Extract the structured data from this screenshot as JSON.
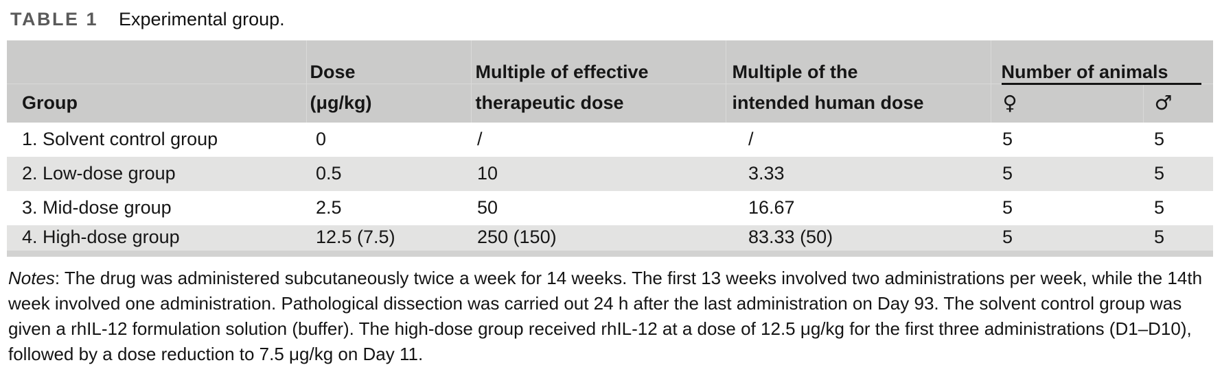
{
  "title": {
    "label": "TABLE 1",
    "caption": "Experimental group."
  },
  "table": {
    "columns": {
      "group": "Group",
      "dose_line1": "Dose",
      "dose_line2": "(μg/kg)",
      "eff_line1": "Multiple of effective",
      "eff_line2": "therapeutic dose",
      "human_line1": "Multiple of the",
      "human_line2": "intended human dose",
      "animals_group": "Number of animals",
      "female_symbol": "♀",
      "male_symbol": "♂"
    },
    "rows": [
      {
        "group": "1. Solvent control group",
        "dose": "0",
        "eff": "/",
        "human": "/",
        "female": "5",
        "male": "5"
      },
      {
        "group": "2. Low-dose group",
        "dose": "0.5",
        "eff": "10",
        "human": "3.33",
        "female": "5",
        "male": "5"
      },
      {
        "group": "3. Mid-dose group",
        "dose": "2.5",
        "eff": "50",
        "human": "16.67",
        "female": "5",
        "male": "5"
      },
      {
        "group": "4. High-dose group",
        "dose": "12.5 (7.5)",
        "eff": "250 (150)",
        "human": "83.33 (50)",
        "female": "5",
        "male": "5"
      }
    ]
  },
  "notes": {
    "label": "Notes",
    "text": ": The drug was administered subcutaneously twice a week for 14 weeks. The first 13 weeks involved two administrations per week, while the 14th week involved one administration. Pathological dissection was carried out 24 h after the last administration on Day 93. The solvent control group was given a rhIL-12 formulation solution (buffer). The high-dose group received rhIL-12 at a dose of 12.5 μg/kg for the first three administrations (D1–D10), followed by a dose reduction to 7.5 μg/kg on Day 11."
  },
  "colors": {
    "header_bg": "#cbcbca",
    "row_alt_bg": "#e3e3e2",
    "bottom_bar": "#d2d2d1",
    "divider": "#d9d9d8",
    "title_label": "#5a5a5a",
    "rule": "#141414"
  }
}
